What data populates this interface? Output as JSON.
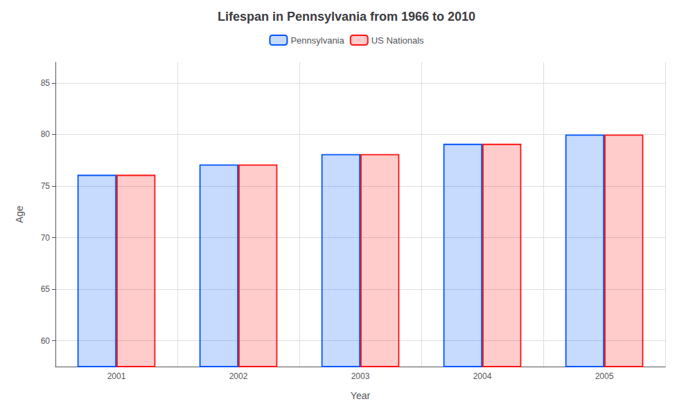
{
  "chart_data": {
    "type": "bar",
    "title": "Lifespan in Pennsylvania from 1966 to 2010",
    "xlabel": "Year",
    "ylabel": "Age",
    "categories": [
      "2001",
      "2002",
      "2003",
      "2004",
      "2005"
    ],
    "series": [
      {
        "name": "Pennsylvania",
        "color": "#0055ff",
        "values": [
          76.1,
          77.1,
          78.1,
          79.1,
          80.0
        ]
      },
      {
        "name": "US Nationals",
        "color": "#ff1111",
        "values": [
          76.1,
          77.1,
          78.1,
          79.1,
          80.0
        ]
      }
    ],
    "ylim": [
      57.5,
      87
    ],
    "yticks": [
      60,
      65,
      70,
      75,
      80,
      85
    ],
    "grid": true,
    "legend": "top"
  }
}
